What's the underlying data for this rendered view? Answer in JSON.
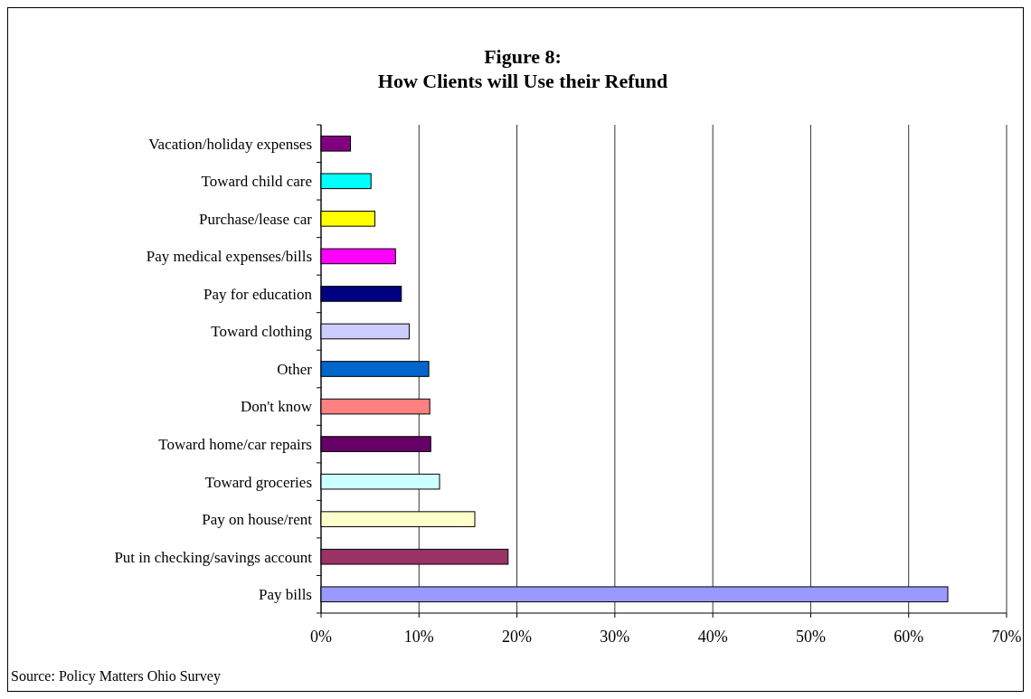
{
  "chart_data": {
    "type": "bar",
    "orientation": "horizontal",
    "title": "Figure 8:\nHow Clients will Use their Refund",
    "categories": [
      "Vacation/holiday expenses",
      "Toward child care",
      "Purchase/lease car",
      "Pay medical expenses/bills",
      "Pay for education",
      "Toward clothing",
      "Other ",
      "Don't know",
      "Toward home/car repairs",
      "Toward groceries",
      "Pay on house/rent",
      "Put in checking/savings account",
      "Pay bills"
    ],
    "values": [
      3.0,
      5.1,
      5.5,
      7.6,
      8.2,
      9.0,
      11.0,
      11.1,
      11.2,
      12.1,
      15.7,
      19.1,
      64.0
    ],
    "colors": [
      "#800080",
      "#00ffff",
      "#ffff00",
      "#ff00ff",
      "#000080",
      "#ccccff",
      "#0066cc",
      "#ff8080",
      "#660066",
      "#ccffff",
      "#ffffcc",
      "#993366",
      "#9999ff"
    ],
    "xlim": [
      0,
      70
    ],
    "xticks": [
      {
        "value": 0,
        "label": "0%"
      },
      {
        "value": 10,
        "label": "10%"
      },
      {
        "value": 20,
        "label": "20%"
      },
      {
        "value": 30,
        "label": "30%"
      },
      {
        "value": 40,
        "label": "40%"
      },
      {
        "value": 50,
        "label": "50%"
      },
      {
        "value": 60,
        "label": "60%"
      },
      {
        "value": 70,
        "label": "70%"
      }
    ],
    "grid": "x",
    "annotations": [
      "Source: Policy Matters Ohio Survey"
    ]
  }
}
